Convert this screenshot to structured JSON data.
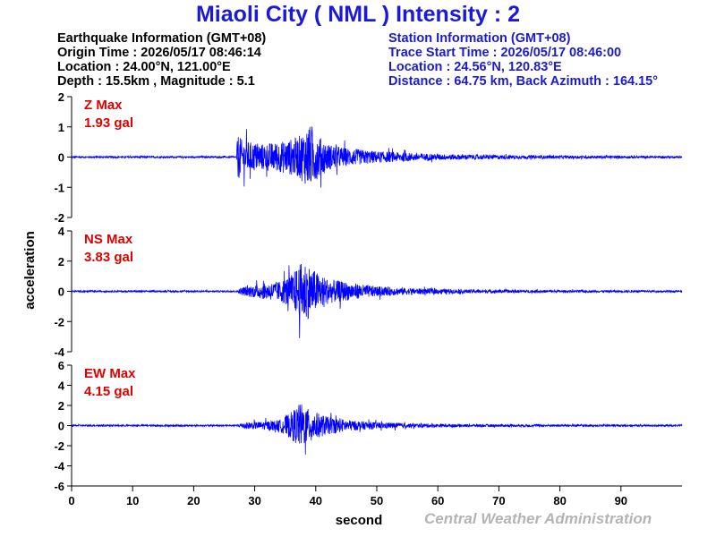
{
  "title": "Miaoli City ( NML ) Intensity : 2",
  "earthquake_info": {
    "heading": "Earthquake Information (GMT+08)",
    "origin_time": "Origin Time : 2026/05/17 08:46:14",
    "location": "Location : 24.00°N, 121.00°E",
    "depth_magnitude": "Depth : 15.5km , Magnitude : 5.1"
  },
  "station_info": {
    "heading": "Station Information (GMT+08)",
    "trace_start": "Trace Start Time : 2026/05/17 08:46:00",
    "location": "Location : 24.56°N, 120.83°E",
    "distance": "Distance : 64.75 km, Back Azimuth : 164.15°"
  },
  "credit": "Central Weather Administration",
  "colors": {
    "trace": "#0000ff",
    "title": "#1a1ad8",
    "max_label": "#e00000",
    "credit": "#b4b4b4"
  },
  "chart_data": {
    "type": "line",
    "xlabel": "second",
    "ylabel": "acceleration",
    "xlim": [
      0,
      100
    ],
    "x_ticks": [
      0,
      10,
      20,
      30,
      40,
      50,
      60,
      70,
      80,
      90
    ],
    "grid": false,
    "series": [
      {
        "name": "Z Max",
        "max_label": "1.93 gal",
        "ylim": [
          -2,
          2
        ],
        "y_ticks": [
          -2,
          -1,
          0,
          1,
          2
        ],
        "noise": 0.05,
        "envelope": [
          [
            0,
            0.05
          ],
          [
            27.0,
            0.05
          ],
          [
            27.2,
            1.4
          ],
          [
            28,
            1.0
          ],
          [
            31,
            0.8
          ],
          [
            34,
            0.9
          ],
          [
            37,
            1.2
          ],
          [
            39,
            1.9
          ],
          [
            40,
            1.4
          ],
          [
            42,
            0.8
          ],
          [
            45,
            0.55
          ],
          [
            50,
            0.35
          ],
          [
            60,
            0.18
          ],
          [
            75,
            0.1
          ],
          [
            100,
            0.06
          ]
        ]
      },
      {
        "name": "NS Max",
        "max_label": "3.83 gal",
        "ylim": [
          -4,
          4
        ],
        "y_ticks": [
          -4,
          -2,
          0,
          2,
          4
        ],
        "noise": 0.1,
        "envelope": [
          [
            0,
            0.1
          ],
          [
            27,
            0.1
          ],
          [
            28,
            0.5
          ],
          [
            31,
            0.9
          ],
          [
            34,
            1.2
          ],
          [
            36,
            2.0
          ],
          [
            38,
            3.8
          ],
          [
            40,
            2.4
          ],
          [
            42,
            1.5
          ],
          [
            46,
            1.0
          ],
          [
            50,
            0.6
          ],
          [
            55,
            0.4
          ],
          [
            65,
            0.22
          ],
          [
            80,
            0.15
          ],
          [
            100,
            0.1
          ]
        ]
      },
      {
        "name": "EW Max",
        "max_label": "4.15 gal",
        "ylim": [
          -6,
          6
        ],
        "y_ticks": [
          -6,
          -4,
          -2,
          0,
          2,
          4,
          6
        ],
        "noise": 0.15,
        "envelope": [
          [
            0,
            0.15
          ],
          [
            27,
            0.15
          ],
          [
            28,
            0.6
          ],
          [
            31,
            0.7
          ],
          [
            34,
            1.0
          ],
          [
            36,
            2.5
          ],
          [
            37.5,
            4.1
          ],
          [
            39,
            2.8
          ],
          [
            42,
            1.6
          ],
          [
            46,
            0.9
          ],
          [
            50,
            0.6
          ],
          [
            55,
            0.4
          ],
          [
            65,
            0.25
          ],
          [
            80,
            0.2
          ],
          [
            100,
            0.15
          ]
        ]
      }
    ]
  }
}
